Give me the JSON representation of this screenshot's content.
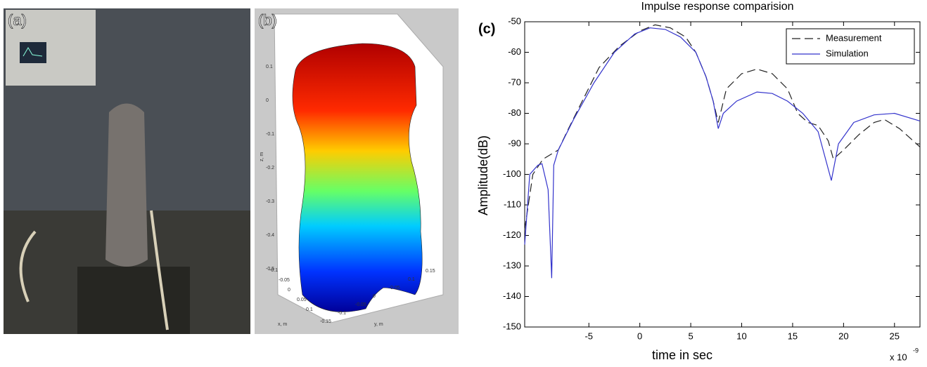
{
  "panel_labels": [
    "(a)",
    "(b)",
    "(c)"
  ],
  "panel_b": {
    "zticks": [
      "0.1",
      "0",
      "-0.1",
      "-0.2",
      "-0.3",
      "-0.4",
      "-0.5"
    ],
    "xticks": [
      "-0.1",
      "-0.05",
      "0",
      "0.05",
      "0.1"
    ],
    "yticks": [
      "-0.15",
      "-0.1",
      "-0.05",
      "0",
      "0.05",
      "0.1",
      "0.15"
    ],
    "zlabel": "z, m",
    "xlabel": "x, m",
    "ylabel": "y, m"
  },
  "chart_data": {
    "type": "line",
    "title": "Impulse response comparision",
    "x_label": "time in sec",
    "y_label": "Amplitude(dB)",
    "x_multiplier": "x 10",
    "x_exponent": "-9",
    "xlim": [
      -11.3,
      27.5
    ],
    "ylim": [
      -150,
      -50
    ],
    "xticks": [
      -5,
      0,
      5,
      10,
      15,
      20,
      25
    ],
    "yticks": [
      -50,
      -60,
      -70,
      -80,
      -90,
      -100,
      -110,
      -120,
      -130,
      -140,
      -150
    ],
    "legend": "upper right",
    "series": [
      {
        "name": "Measurement",
        "color": "#222222",
        "dash": true,
        "x": [
          -11.3,
          -10.5,
          -9.5,
          -8,
          -7,
          -5.5,
          -4,
          -2,
          0,
          1.5,
          3,
          4.5,
          5.5,
          6.5,
          7.2,
          7.7,
          8.5,
          10,
          11.5,
          13,
          14.5,
          15.5,
          16.5,
          17.5,
          18.5,
          19,
          20,
          21.5,
          23,
          24,
          25.5,
          27.5
        ],
        "values": [
          -118,
          -100,
          -95,
          -92,
          -85,
          -75,
          -65,
          -58,
          -53,
          -51,
          -52,
          -55,
          -60,
          -68,
          -76,
          -83,
          -72,
          -67,
          -65.5,
          -67,
          -72,
          -80,
          -83,
          -84,
          -89,
          -95,
          -92,
          -87,
          -83,
          -82,
          -85,
          -91
        ]
      },
      {
        "name": "Simulation",
        "color": "#3333cc",
        "dash": false,
        "x": [
          -11.3,
          -10.8,
          -10,
          -9.6,
          -9,
          -8.65,
          -8.45,
          -8,
          -6.5,
          -4.5,
          -2.5,
          -0.5,
          1,
          2.5,
          4,
          5.5,
          6.5,
          7.2,
          7.7,
          8.2,
          9.5,
          11.5,
          13,
          14.5,
          16,
          17.5,
          18.8,
          19.5,
          21,
          23,
          25,
          27.5
        ],
        "values": [
          -123,
          -100,
          -97,
          -96.5,
          -105,
          -134,
          -97,
          -92,
          -82,
          -70,
          -60,
          -54,
          -52,
          -52.5,
          -55,
          -60,
          -68,
          -76,
          -85,
          -80,
          -76,
          -73,
          -73.5,
          -76,
          -80,
          -86,
          -102,
          -90,
          -83,
          -80.5,
          -80,
          -82.5
        ]
      }
    ]
  }
}
